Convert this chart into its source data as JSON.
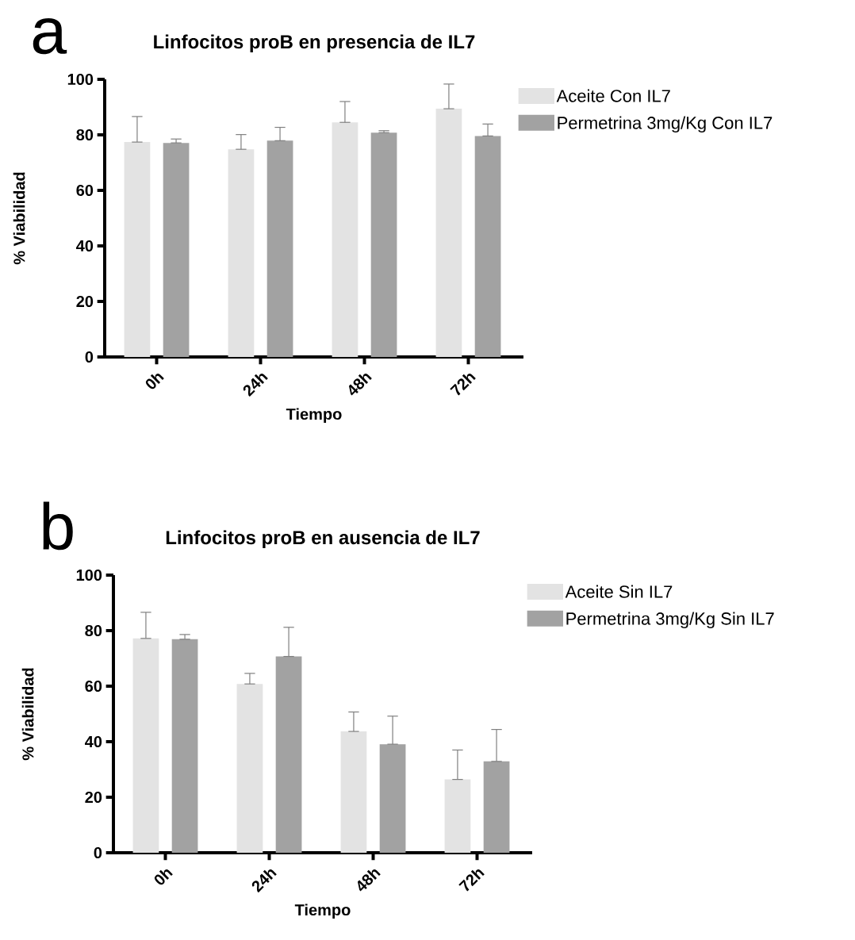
{
  "chart_data": [
    {
      "type": "bar",
      "title": "Linfocitos proB en presencia de IL7",
      "xlabel": "Tiempo",
      "ylabel": "% Viabilidad",
      "annotations": [
        "a"
      ],
      "categories": [
        "0h",
        "24h",
        "48h",
        "72h"
      ],
      "series": [
        {
          "name": "Aceite Con IL7",
          "color": "#e3e3e3",
          "values": [
            77.4,
            74.8,
            84.5,
            89.4
          ],
          "errors": [
            [
              77.4,
              86.6
            ],
            [
              74.8,
              80.1
            ],
            [
              84.5,
              92.0
            ],
            [
              89.4,
              98.3
            ]
          ]
        },
        {
          "name": "Permetrina 3mg/Kg  Con IL7",
          "color": "#a2a2a2",
          "values": [
            77.1,
            77.9,
            80.8,
            79.6
          ],
          "errors": [
            [
              77.1,
              78.5
            ],
            [
              77.9,
              82.7
            ],
            [
              80.8,
              81.5
            ],
            [
              79.6,
              83.9
            ]
          ]
        }
      ],
      "ylim": [
        0,
        100
      ],
      "yticks": [
        0,
        20,
        40,
        60,
        80,
        100
      ],
      "legend": "top right"
    },
    {
      "type": "bar",
      "title": "Linfocitos proB en ausencia de IL7",
      "xlabel": "Tiempo",
      "ylabel": "% Viabilidad",
      "annotations": [
        "b"
      ],
      "categories": [
        "0h",
        "24h",
        "48h",
        "72h"
      ],
      "series": [
        {
          "name": "Aceite Sin IL7",
          "color": "#e3e3e3",
          "values": [
            77.2,
            60.8,
            43.7,
            26.4
          ],
          "errors": [
            [
              77.2,
              86.6
            ],
            [
              60.8,
              64.6
            ],
            [
              43.7,
              50.7
            ],
            [
              26.4,
              37.0
            ]
          ]
        },
        {
          "name": "Permetrina 3mg/Kg  Sin IL7",
          "color": "#a2a2a2",
          "values": [
            76.9,
            70.7,
            39.1,
            32.9
          ],
          "errors": [
            [
              76.9,
              78.6
            ],
            [
              70.7,
              81.2
            ],
            [
              39.1,
              49.2
            ],
            [
              32.9,
              44.4
            ]
          ]
        }
      ],
      "ylim": [
        0,
        100
      ],
      "yticks": [
        0,
        20,
        40,
        60,
        80,
        100
      ],
      "legend": "top right"
    }
  ]
}
